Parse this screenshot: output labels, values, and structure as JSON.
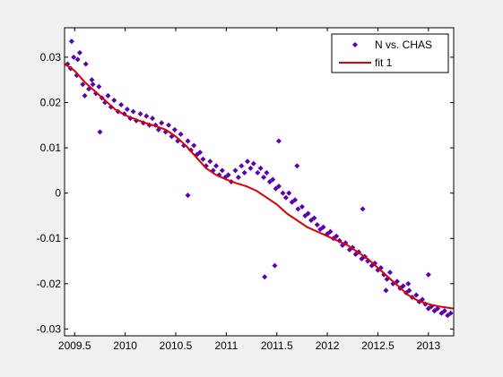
{
  "chart_data": {
    "type": "scatter",
    "xlim": [
      2009.4,
      2013.25
    ],
    "ylim": [
      -0.0315,
      0.0365
    ],
    "x_ticks": [
      2009.5,
      2010,
      2010.5,
      2011,
      2011.5,
      2012,
      2012.5,
      2013
    ],
    "x_tick_labels": [
      "2009.5",
      "2010",
      "2010.5",
      "2011",
      "2011.5",
      "2012",
      "2012.5",
      "2013"
    ],
    "y_ticks": [
      0.03,
      0.02,
      0.01,
      0,
      -0.01,
      -0.02,
      -0.03
    ],
    "y_tick_labels": [
      "0.03",
      "0.02",
      "0.01",
      "0",
      "-0.01",
      "-0.02",
      "-0.03"
    ],
    "grid": false,
    "legend_position": "top-right",
    "series": [
      {
        "name": "N vs. CHAS",
        "kind": "scatter",
        "marker": "diamond",
        "color": "#5a00b4",
        "x": [
          2009.43,
          2009.46,
          2009.49,
          2009.52,
          2009.55,
          2009.58,
          2009.61,
          2009.64,
          2009.67,
          2009.71,
          2009.74,
          2009.77,
          2009.8,
          2009.83,
          2009.86,
          2009.89,
          2009.93,
          2009.96,
          2009.99,
          2010.02,
          2010.05,
          2010.08,
          2010.11,
          2010.15,
          2010.18,
          2010.21,
          2010.24,
          2010.27,
          2010.3,
          2010.33,
          2010.36,
          2010.4,
          2010.43,
          2010.46,
          2010.49,
          2010.52,
          2010.55,
          2010.58,
          2010.62,
          2010.65,
          2010.68,
          2010.71,
          2010.74,
          2010.77,
          2010.8,
          2010.84,
          2010.87,
          2010.9,
          2010.93,
          2010.96,
          2010.99,
          2011.02,
          2011.05,
          2011.09,
          2011.12,
          2011.15,
          2011.18,
          2011.21,
          2011.24,
          2011.27,
          2011.31,
          2011.34,
          2011.37,
          2011.4,
          2011.43,
          2011.46,
          2011.49,
          2011.52,
          2011.56,
          2011.59,
          2011.62,
          2011.65,
          2011.68,
          2011.71,
          2011.75,
          2011.78,
          2011.81,
          2011.84,
          2011.87,
          2011.9,
          2011.93,
          2011.96,
          2012.0,
          2012.03,
          2012.06,
          2012.09,
          2012.12,
          2012.15,
          2012.18,
          2012.22,
          2012.25,
          2012.28,
          2012.31,
          2012.34,
          2012.37,
          2012.4,
          2012.44,
          2012.47,
          2012.5,
          2012.53,
          2012.56,
          2012.59,
          2012.62,
          2012.65,
          2012.69,
          2012.72,
          2012.75,
          2012.78,
          2012.81,
          2012.84,
          2012.88,
          2012.91,
          2012.94,
          2012.97,
          2013.0,
          2013.03,
          2013.06,
          2013.09,
          2013.13,
          2013.16,
          2013.19,
          2013.22,
          2009.47,
          2009.53,
          2009.6,
          2009.68,
          2009.75,
          2010.62,
          2011.38,
          2011.48,
          2011.52,
          2011.7,
          2012.35,
          2012.58,
          2012.8,
          2013.0
        ],
        "y": [
          0.0285,
          0.0275,
          0.03,
          0.026,
          0.031,
          0.024,
          0.0285,
          0.023,
          0.025,
          0.022,
          0.0235,
          0.021,
          0.02,
          0.0215,
          0.019,
          0.0205,
          0.018,
          0.0195,
          0.0175,
          0.0185,
          0.0165,
          0.018,
          0.016,
          0.0175,
          0.0155,
          0.017,
          0.015,
          0.0165,
          0.015,
          0.014,
          0.0155,
          0.0135,
          0.015,
          0.0125,
          0.014,
          0.0115,
          0.013,
          0.0105,
          0.0115,
          0.0095,
          0.0105,
          0.0085,
          0.009,
          0.0075,
          0.006,
          0.007,
          0.005,
          0.006,
          0.004,
          0.005,
          0.0035,
          0.004,
          0.0025,
          0.005,
          0.0035,
          0.006,
          0.0045,
          0.007,
          0.0055,
          0.0065,
          0.0045,
          0.0055,
          0.0035,
          0.0045,
          0.0025,
          0.003,
          0.001,
          0.0015,
          0.0,
          -0.001,
          0.0,
          -0.002,
          -0.0015,
          -0.0035,
          -0.003,
          -0.005,
          -0.0045,
          -0.006,
          -0.0055,
          -0.007,
          -0.008,
          -0.0075,
          -0.009,
          -0.0085,
          -0.01,
          -0.0095,
          -0.0105,
          -0.0115,
          -0.011,
          -0.0125,
          -0.012,
          -0.0135,
          -0.013,
          -0.0145,
          -0.014,
          -0.015,
          -0.016,
          -0.0155,
          -0.017,
          -0.0165,
          -0.018,
          -0.019,
          -0.0175,
          -0.02,
          -0.0195,
          -0.021,
          -0.0205,
          -0.022,
          -0.0215,
          -0.023,
          -0.0225,
          -0.024,
          -0.0235,
          -0.0245,
          -0.0255,
          -0.025,
          -0.026,
          -0.0255,
          -0.0265,
          -0.026,
          -0.027,
          -0.0265,
          0.0335,
          0.0295,
          0.0215,
          0.024,
          0.0135,
          -0.0005,
          -0.0185,
          -0.016,
          0.0115,
          0.006,
          -0.0035,
          -0.0215,
          -0.02,
          -0.018
        ]
      },
      {
        "name": "fit 1",
        "kind": "line",
        "color": "#e00000",
        "x": [
          2009.4,
          2009.5,
          2009.6,
          2009.7,
          2009.8,
          2009.9,
          2010.0,
          2010.1,
          2010.2,
          2010.3,
          2010.4,
          2010.5,
          2010.6,
          2010.7,
          2010.8,
          2010.9,
          2011.0,
          2011.1,
          2011.2,
          2011.3,
          2011.4,
          2011.5,
          2011.6,
          2011.7,
          2011.8,
          2011.9,
          2012.0,
          2012.1,
          2012.2,
          2012.3,
          2012.4,
          2012.5,
          2012.6,
          2012.7,
          2012.8,
          2012.9,
          2013.0,
          2013.1,
          2013.25
        ],
        "y": [
          0.0285,
          0.027,
          0.0245,
          0.0225,
          0.0205,
          0.0185,
          0.0172,
          0.0163,
          0.0155,
          0.0148,
          0.014,
          0.0125,
          0.0105,
          0.008,
          0.0055,
          0.004,
          0.003,
          0.0022,
          0.0015,
          0.0005,
          -0.001,
          -0.0025,
          -0.0045,
          -0.006,
          -0.0075,
          -0.0085,
          -0.0095,
          -0.0105,
          -0.0115,
          -0.013,
          -0.0145,
          -0.0165,
          -0.0185,
          -0.0205,
          -0.0225,
          -0.0238,
          -0.0245,
          -0.025,
          -0.0255
        ]
      }
    ]
  }
}
